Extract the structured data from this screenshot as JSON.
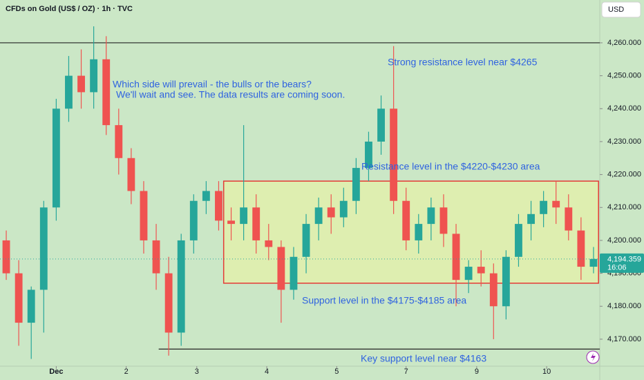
{
  "chart_data": {
    "type": "candlestick",
    "title": "CFDs on Gold (US$ / OZ) · 1h · TVC",
    "currency": "USD",
    "up_color": "#26a69a",
    "down_color": "#ef5350",
    "xlim": [
      0,
      48
    ],
    "ylim": [
      4161.8,
      4273
    ],
    "xticks": [
      {
        "value": 4.5,
        "label": "Dec"
      },
      {
        "value": 10.1,
        "label": "2"
      },
      {
        "value": 15.75,
        "label": "3"
      },
      {
        "value": 21.35,
        "label": "4"
      },
      {
        "value": 26.95,
        "label": "5"
      },
      {
        "value": 32.5,
        "label": "7"
      },
      {
        "value": 38.15,
        "label": "9"
      },
      {
        "value": 43.75,
        "label": "10"
      }
    ],
    "yticks": [
      {
        "value": 4170,
        "label": "4,170.000"
      },
      {
        "value": 4180,
        "label": "4,180.000"
      },
      {
        "value": 4190,
        "label": "4,190.000"
      },
      {
        "value": 4200,
        "label": "4,200.000"
      },
      {
        "value": 4210,
        "label": "4,210.000"
      },
      {
        "value": 4220,
        "label": "4,220.000"
      },
      {
        "value": 4230,
        "label": "4,230.000"
      },
      {
        "value": 4240,
        "label": "4,240.000"
      },
      {
        "value": 4250,
        "label": "4,250.000"
      },
      {
        "value": 4260,
        "label": "4,260.000"
      }
    ],
    "open": [
      4200,
      4190,
      4175,
      4185,
      4210,
      4240,
      4250,
      4245,
      4255,
      4235,
      4225,
      4215,
      4200,
      4190,
      4172,
      4200,
      4212,
      4215,
      4206,
      4205,
      4210,
      4200,
      4198,
      4185,
      4195,
      4205,
      4210,
      4207,
      4212,
      4222,
      4230,
      4240,
      4212,
      4200,
      4205,
      4210,
      4202,
      4188,
      4192,
      4190,
      4180,
      4195,
      4205,
      4208,
      4212,
      4210,
      4203,
      4192
    ],
    "high": [
      4203,
      4194,
      4186,
      4212,
      4243,
      4256,
      4258,
      4265,
      4262,
      4240,
      4228,
      4218,
      4205,
      4195,
      4202,
      4214,
      4218,
      4218,
      4210,
      4235,
      4214,
      4205,
      4200,
      4198,
      4208,
      4213,
      4214,
      4216,
      4225,
      4233,
      4244,
      4259,
      4216,
      4208,
      4213,
      4214,
      4205,
      4194,
      4197,
      4193,
      4197,
      4208,
      4212,
      4215,
      4218,
      4214,
      4207,
      4198
    ],
    "low": [
      4188,
      4168,
      4164,
      4172,
      4206,
      4236,
      4240,
      4240,
      4232,
      4220,
      4211,
      4196,
      4185,
      4165,
      4168,
      4196,
      4208,
      4203,
      4200,
      4200,
      4196,
      4194,
      4175,
      4182,
      4190,
      4200,
      4202,
      4204,
      4208,
      4218,
      4226,
      4208,
      4197,
      4196,
      4200,
      4198,
      4180,
      4184,
      4186,
      4170,
      4176,
      4192,
      4200,
      4204,
      4205,
      4200,
      4188,
      4190
    ],
    "close": [
      4190,
      4175,
      4185,
      4210,
      4240,
      4250,
      4245,
      4255,
      4235,
      4225,
      4215,
      4200,
      4190,
      4172,
      4200,
      4212,
      4215,
      4206,
      4205,
      4210,
      4200,
      4198,
      4185,
      4195,
      4205,
      4210,
      4207,
      4212,
      4222,
      4230,
      4240,
      4212,
      4200,
      4205,
      4210,
      4202,
      4188,
      4192,
      4190,
      4180,
      4195,
      4205,
      4208,
      4212,
      4210,
      4203,
      4192,
      4194.359
    ],
    "last_price": {
      "value": 4194.359,
      "label": "4,194.359"
    },
    "countdown": "16:06",
    "lines": [
      {
        "value": 4260,
        "x": [
          0,
          48
        ]
      },
      {
        "value": 4167,
        "x": [
          12.7,
          48
        ]
      }
    ],
    "zone": {
      "low": 4187,
      "high": 4218,
      "x": [
        17.9,
        47.9
      ]
    },
    "annotations": [
      "Which side will prevail - the bulls or the bears?",
      "We'll wait and see. The data results are coming soon.",
      "Strong resistance level near $4265",
      "Resistance level in the $4220-$4230 area",
      "Support level in the $4175-$4185 area",
      "Key support level near $4163"
    ]
  }
}
